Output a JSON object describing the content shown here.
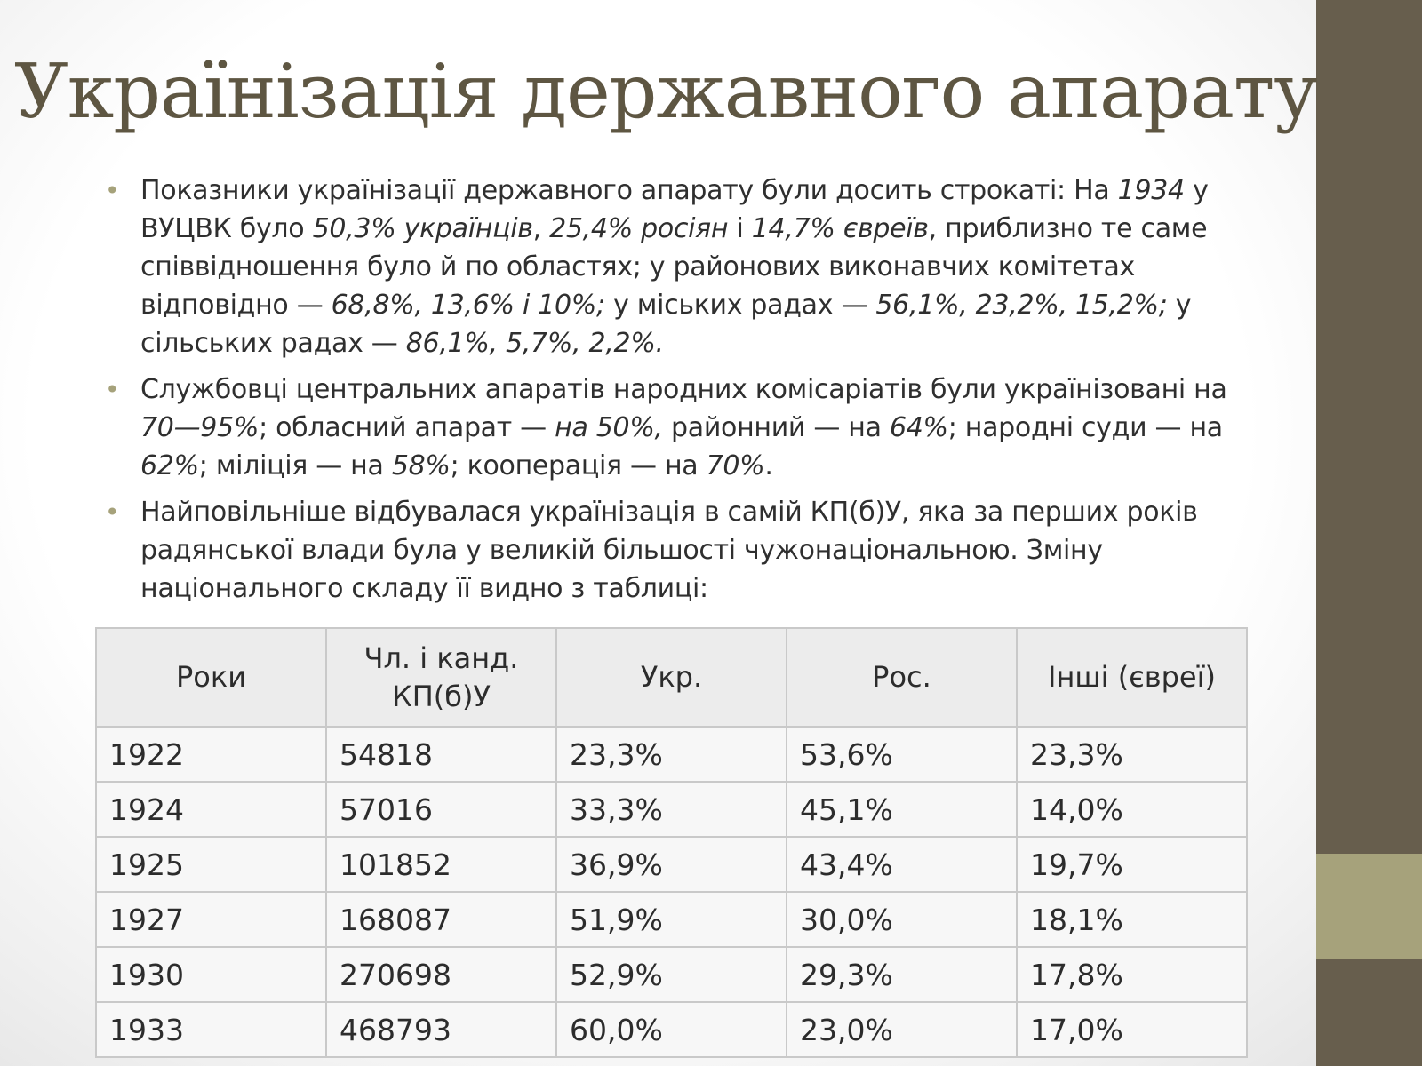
{
  "slide": {
    "title": "Українізація державного апарату"
  },
  "bullets": [
    {
      "segments": [
        {
          "text": "Показники українізації державного апарату були досить строкаті: На ",
          "italic": false
        },
        {
          "text": "1934",
          "italic": true
        },
        {
          "text": " у ВУЦВК було ",
          "italic": false
        },
        {
          "text": "50,3% українців",
          "italic": true
        },
        {
          "text": ", ",
          "italic": false
        },
        {
          "text": "25,4% росіян",
          "italic": true
        },
        {
          "text": " і ",
          "italic": false
        },
        {
          "text": "14,7% євреїв",
          "italic": true
        },
        {
          "text": ", приблизно те саме співвідношення було й по областях; у районових виконавчих комітетах відповідно — ",
          "italic": false
        },
        {
          "text": "68,8%, 13,6% і 10%;",
          "italic": true
        },
        {
          "text": " у міських радах — ",
          "italic": false
        },
        {
          "text": "56,1%, 23,2%, 15,2%;",
          "italic": true
        },
        {
          "text": " у сільських радах — ",
          "italic": false
        },
        {
          "text": "86,1%, 5,7%, 2,2%.",
          "italic": true
        }
      ]
    },
    {
      "segments": [
        {
          "text": "Службовці центральних апаратів народних комісаріатів були українізовані на ",
          "italic": false
        },
        {
          "text": "70—95%",
          "italic": true
        },
        {
          "text": "; обласний апарат — ",
          "italic": false
        },
        {
          "text": "на 50%,",
          "italic": true
        },
        {
          "text": " районний — на ",
          "italic": false
        },
        {
          "text": "64%",
          "italic": true
        },
        {
          "text": "; народні суди — на ",
          "italic": false
        },
        {
          "text": "62%",
          "italic": true
        },
        {
          "text": "; міліція — на ",
          "italic": false
        },
        {
          "text": "58%",
          "italic": true
        },
        {
          "text": "; кооперація — на ",
          "italic": false
        },
        {
          "text": "70%",
          "italic": true
        },
        {
          "text": ".",
          "italic": false
        }
      ]
    },
    {
      "segments": [
        {
          "text": "Найповільніше відбувалася українізація в самій КП(б)У, яка за перших років радянської влади була у великій більшості чужонаціональною. Зміну національного складу її видно з таблиці:",
          "italic": false
        }
      ]
    }
  ],
  "table": {
    "headers": [
      "Роки",
      "Чл. і канд. КП(б)У",
      "Укр.",
      "Рос.",
      "Інші (євреї)"
    ],
    "rows": [
      [
        "1922",
        "54818",
        "23,3%",
        "53,6%",
        "23,3%"
      ],
      [
        "1924",
        "57016",
        "33,3%",
        "45,1%",
        "14,0%"
      ],
      [
        "1925",
        "101852",
        "36,9%",
        "43,4%",
        "19,7%"
      ],
      [
        "1927",
        "168087",
        "51,9%",
        "30,0%",
        "18,1%"
      ],
      [
        "1930",
        "270698",
        "52,9%",
        "29,3%",
        "17,8%"
      ],
      [
        "1933",
        "468793",
        "60,0%",
        "23,0%",
        "17,0%"
      ]
    ]
  },
  "theme": {
    "sidebar_color": "#675e4d",
    "accent_color": "#a6a27b",
    "title_color": "#5e5642"
  }
}
